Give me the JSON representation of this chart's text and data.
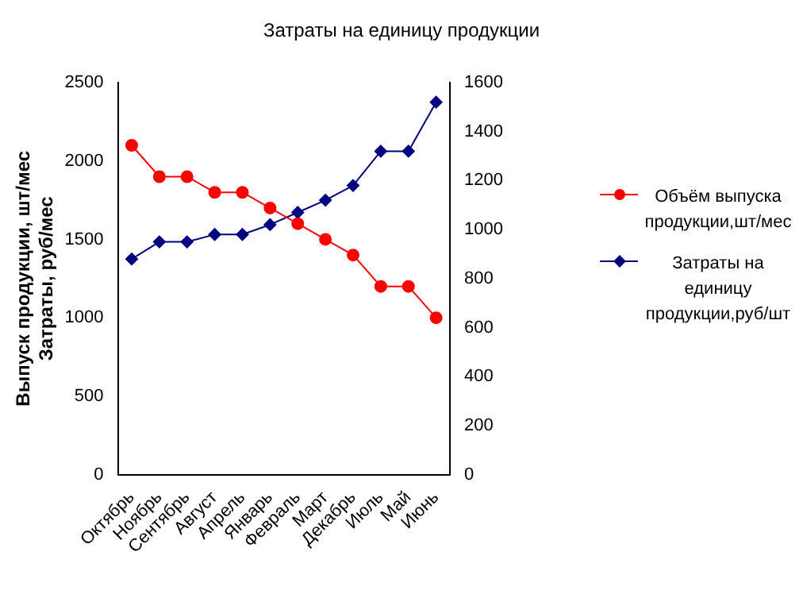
{
  "chart_data": {
    "type": "line",
    "title": "Затраты на единицу продукции",
    "ylabel": "Выпуск продукции, шт/мес\nЗатраты, руб/мес",
    "categories": [
      "Октябрь",
      "Ноябрь",
      "Сентябрь",
      "Август",
      "Апрель",
      "Январь",
      "Февраль",
      "Март",
      "Декабрь",
      "Июль",
      "Май",
      "Июнь"
    ],
    "series": [
      {
        "name": "Объём выпуска продукции,шт/мес",
        "color": "#ff0000",
        "marker": "circle",
        "values": [
          2100,
          1900,
          1900,
          1800,
          1800,
          1700,
          1600,
          1500,
          1400,
          1200,
          1200,
          1000
        ]
      },
      {
        "name": "Затраты на единицу продукции,руб/шт",
        "color": "#000080",
        "marker": "diamond",
        "axis": "y2",
        "values": [
          880,
          950,
          950,
          980,
          980,
          1020,
          1070,
          1120,
          1180,
          1320,
          1320,
          1520
        ]
      }
    ],
    "ylim": [
      0,
      2500
    ],
    "yticks": [
      0,
      500,
      1000,
      1500,
      2000,
      2500
    ],
    "y2lim": [
      0,
      1600
    ],
    "y2ticks": [
      0,
      200,
      400,
      600,
      800,
      1000,
      1200,
      1400,
      1600
    ],
    "grid": false,
    "legend": "right",
    "line_style": "solid"
  }
}
